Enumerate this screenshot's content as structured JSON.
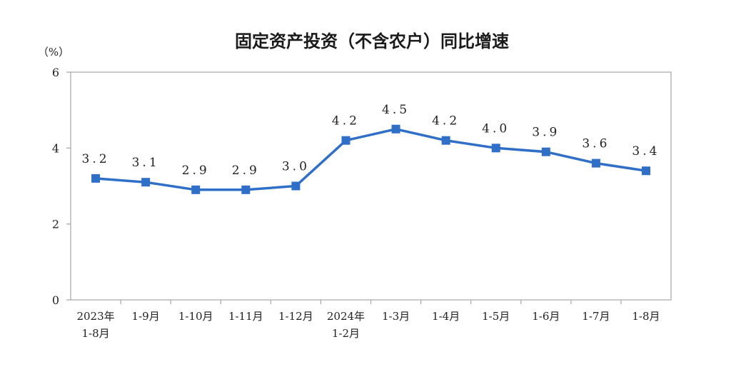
{
  "chart_data": {
    "type": "line",
    "title": "固定资产投资（不含农户）同比增速",
    "unit": "（%）",
    "categories": [
      [
        "2023年",
        "1-8月"
      ],
      [
        "1-9月"
      ],
      [
        "1-10月"
      ],
      [
        "1-11月"
      ],
      [
        "1-12月"
      ],
      [
        "2024年",
        "1-2月"
      ],
      [
        "1-3月"
      ],
      [
        "1-4月"
      ],
      [
        "1-5月"
      ],
      [
        "1-6月"
      ],
      [
        "1-7月"
      ],
      [
        "1-8月"
      ]
    ],
    "series": [
      {
        "values": [
          3.2,
          3.1,
          2.9,
          2.9,
          3.0,
          4.2,
          4.5,
          4.2,
          4.0,
          3.9,
          3.6,
          3.4
        ],
        "labels": [
          "3.2",
          "3.1",
          "2.9",
          "2.9",
          "3.0",
          "4.2",
          "4.5",
          "4.2",
          "4.0",
          "3.9",
          "3.6",
          "3.4"
        ],
        "color": "#2f6fc8"
      }
    ],
    "ylim": [
      0,
      6
    ],
    "yticks": [
      "0",
      "2",
      "4",
      "6"
    ],
    "grid": false,
    "legend": "none",
    "axis_color": "#a6a6a6"
  }
}
